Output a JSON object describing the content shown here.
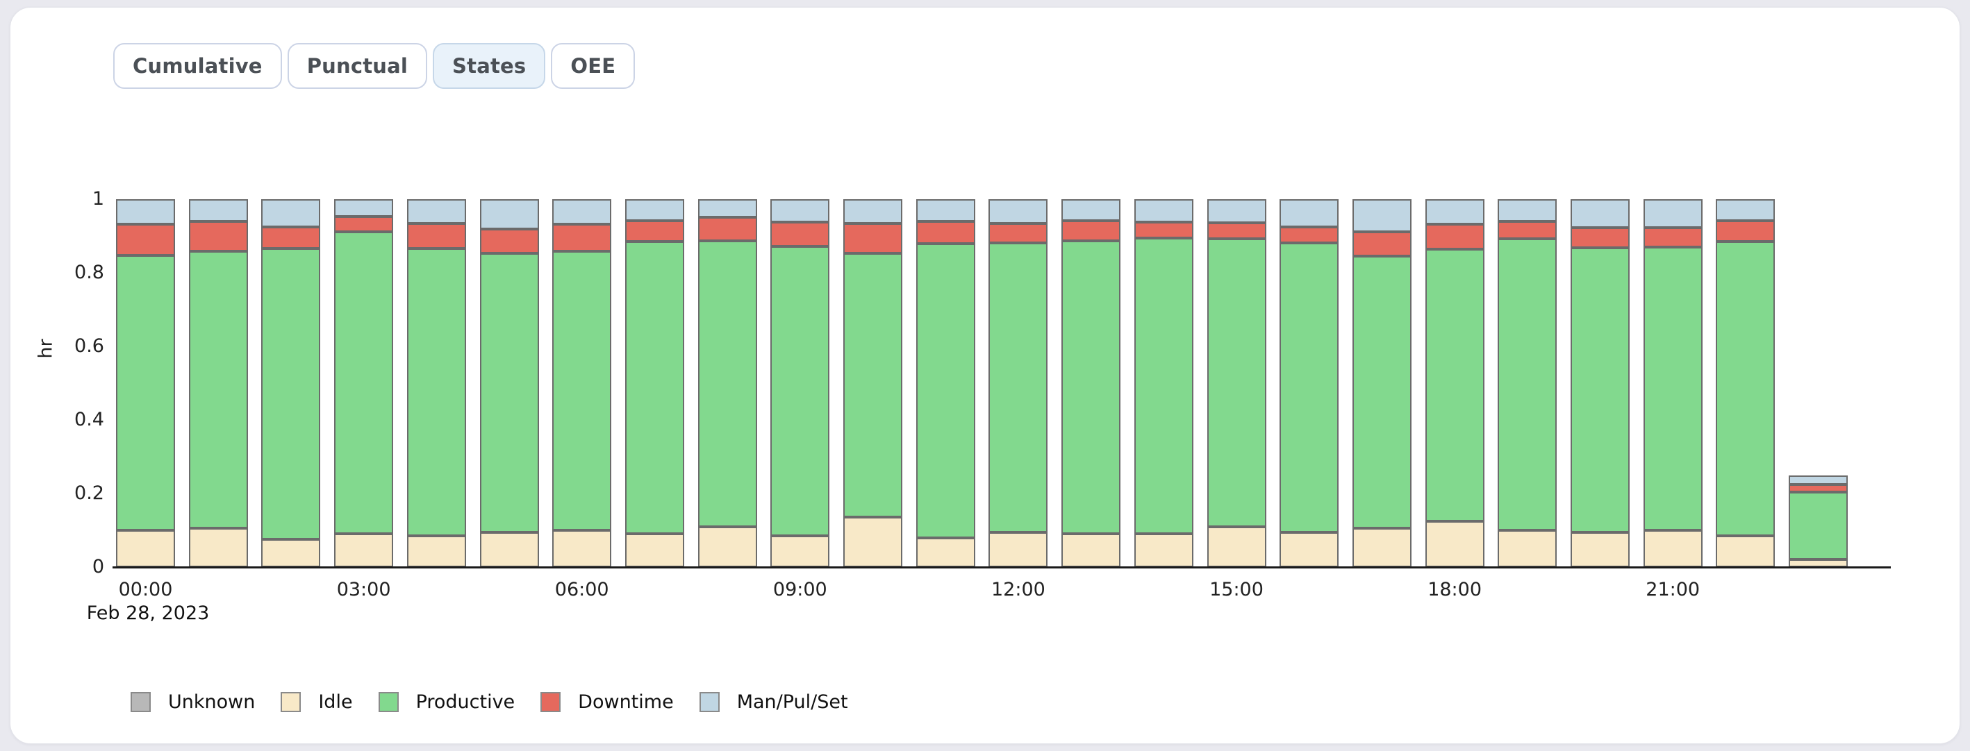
{
  "colors": {
    "page_bg": "#e9e9ef",
    "card_bg": "#ffffff",
    "tab_text": "#4b5056",
    "tab_border": "#ccd4e6",
    "active_tab_bg": "#e9f2fa",
    "active_tab_border": "#c6d7e9",
    "bar_border": "#6b6b6b",
    "axis_line": "#1a1a1a"
  },
  "tabs": [
    {
      "label": "Cumulative",
      "active": false
    },
    {
      "label": "Punctual",
      "active": false
    },
    {
      "label": "States",
      "active": true
    },
    {
      "label": "OEE",
      "active": false
    }
  ],
  "chart_data": {
    "type": "bar",
    "stacked": true,
    "title": "",
    "xlabel": "",
    "ylabel": "hr",
    "x_date_label": "Feb 28, 2023",
    "ylim": [
      0,
      1
    ],
    "y_ticks": [
      "1",
      "0.8",
      "0.6",
      "0.4",
      "0.2",
      "0"
    ],
    "y_tick_values": [
      1,
      0.8,
      0.6,
      0.4,
      0.2,
      0
    ],
    "x_tick_labels": [
      "00:00",
      "03:00",
      "06:00",
      "09:00",
      "12:00",
      "15:00",
      "18:00",
      "21:00"
    ],
    "x_tick_hours": [
      0,
      3,
      6,
      9,
      12,
      15,
      18,
      21
    ],
    "grid": false,
    "legend_position": "bottom",
    "categories": [
      "00:00",
      "01:00",
      "02:00",
      "03:00",
      "04:00",
      "05:00",
      "06:00",
      "07:00",
      "08:00",
      "09:00",
      "10:00",
      "11:00",
      "12:00",
      "13:00",
      "14:00",
      "15:00",
      "16:00",
      "17:00",
      "18:00",
      "19:00",
      "20:00",
      "21:00",
      "22:00",
      "23:00"
    ],
    "series": [
      {
        "name": "Unknown",
        "color": "#b8b8b8",
        "values": [
          0,
          0,
          0,
          0,
          0,
          0,
          0,
          0,
          0,
          0,
          0,
          0,
          0,
          0,
          0,
          0,
          0,
          0,
          0,
          0,
          0,
          0,
          0,
          0
        ]
      },
      {
        "name": "Idle",
        "color": "#f8e9c8",
        "values": [
          0.1,
          0.105,
          0.075,
          0.09,
          0.085,
          0.095,
          0.1,
          0.09,
          0.11,
          0.085,
          0.135,
          0.08,
          0.095,
          0.09,
          0.09,
          0.11,
          0.095,
          0.105,
          0.125,
          0.1,
          0.095,
          0.1,
          0.085,
          0.02
        ]
      },
      {
        "name": "Productive",
        "color": "#82d98e",
        "values": [
          0.747,
          0.753,
          0.791,
          0.821,
          0.781,
          0.758,
          0.758,
          0.795,
          0.777,
          0.787,
          0.718,
          0.799,
          0.786,
          0.797,
          0.805,
          0.783,
          0.786,
          0.74,
          0.74,
          0.793,
          0.772,
          0.77,
          0.8,
          0.183
        ]
      },
      {
        "name": "Downtime",
        "color": "#e5695d",
        "values": [
          0.085,
          0.082,
          0.058,
          0.042,
          0.068,
          0.066,
          0.074,
          0.057,
          0.064,
          0.066,
          0.081,
          0.061,
          0.053,
          0.055,
          0.043,
          0.042,
          0.043,
          0.067,
          0.067,
          0.047,
          0.055,
          0.052,
          0.056,
          0.022
        ]
      },
      {
        "name": "Man/Pul/Set",
        "color": "#c0d6e3",
        "values": [
          0.068,
          0.06,
          0.076,
          0.047,
          0.066,
          0.081,
          0.068,
          0.058,
          0.049,
          0.062,
          0.066,
          0.06,
          0.066,
          0.058,
          0.062,
          0.065,
          0.076,
          0.088,
          0.068,
          0.06,
          0.078,
          0.078,
          0.059,
          0.025
        ]
      }
    ]
  }
}
